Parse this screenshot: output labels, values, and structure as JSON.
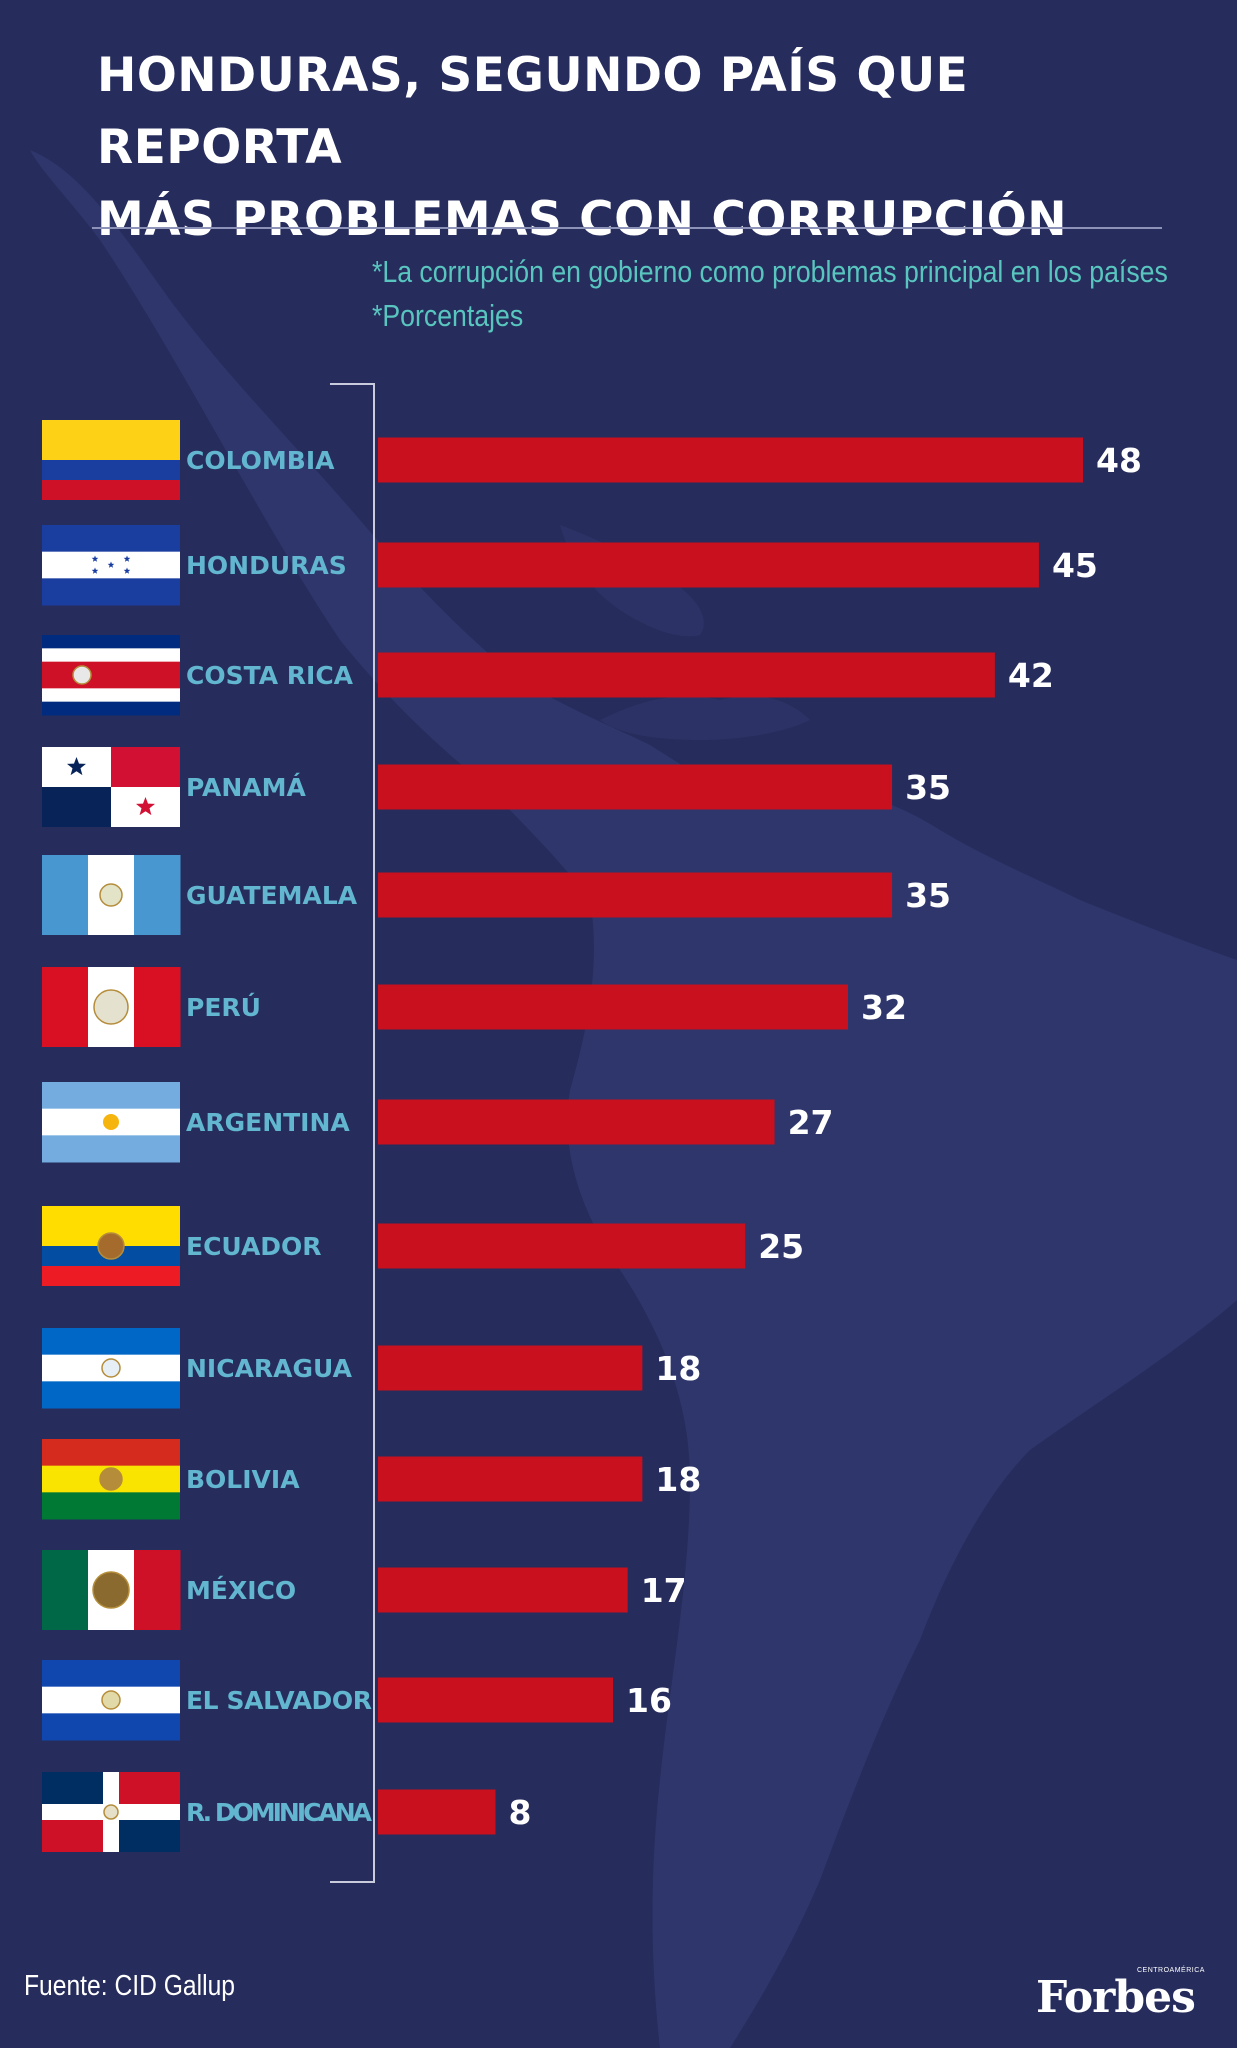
{
  "header": {
    "title_line1": "HONDURAS, SEGUNDO PAÍS QUE REPORTA",
    "title_line2": "MÁS PROBLEMAS CON CORRUPCIÓN",
    "note1": "*La corrupción en gobierno como problemas principal en los países",
    "note2": "*Porcentajes"
  },
  "footer": {
    "source": "Fuente: CID Gallup",
    "brand": "Forbes",
    "brand_sub": "CENTROAMÉRICA"
  },
  "colors": {
    "background": "#262c5c",
    "bar": "#c8101e",
    "label": "#62b6cf",
    "value": "#ffffff",
    "note": "#59c5bf"
  },
  "chart_data": {
    "type": "bar",
    "orientation": "horizontal",
    "categories": [
      "COLOMBIA",
      "HONDURAS",
      "COSTA RICA",
      "PANAMÁ",
      "GUATEMALA",
      "PERÚ",
      "ARGENTINA",
      "ECUADOR",
      "NICARAGUA",
      "BOLIVIA",
      "MÉXICO",
      "EL SALVADOR",
      "R. DOMINICANA"
    ],
    "values": [
      48,
      45,
      42,
      35,
      35,
      32,
      27,
      25,
      18,
      18,
      17,
      16,
      8
    ],
    "data_labels": [
      "48",
      "45",
      "42",
      "35",
      "35",
      "32",
      "27",
      "25",
      "18",
      "18",
      "17",
      "16",
      "8"
    ],
    "flags": [
      "colombia-flag",
      "honduras-flag",
      "costa-rica-flag",
      "panama-flag",
      "guatemala-flag",
      "peru-flag",
      "argentina-flag",
      "ecuador-flag",
      "nicaragua-flag",
      "bolivia-flag",
      "mexico-flag",
      "el-salvador-flag",
      "dominican-republic-flag"
    ],
    "xlim": [
      0,
      48
    ],
    "grid": false,
    "legend": "none"
  }
}
